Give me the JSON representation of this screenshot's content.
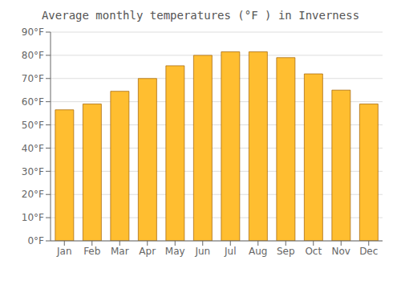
{
  "chart_data": {
    "type": "bar",
    "title": "Average monthly temperatures (°F ) in Inverness",
    "categories": [
      "Jan",
      "Feb",
      "Mar",
      "Apr",
      "May",
      "Jun",
      "Jul",
      "Aug",
      "Sep",
      "Oct",
      "Nov",
      "Dec"
    ],
    "values": [
      56.5,
      59.0,
      64.5,
      70.0,
      75.5,
      80.0,
      81.5,
      81.5,
      79.0,
      72.0,
      65.0,
      59.0
    ],
    "color": "#FFBE30",
    "ylim": [
      0,
      90
    ],
    "yticks": [
      {
        "value": 0,
        "label": "0°F"
      },
      {
        "value": 10,
        "label": "10°F"
      },
      {
        "value": 20,
        "label": "20°F"
      },
      {
        "value": 30,
        "label": "30°F"
      },
      {
        "value": 40,
        "label": "40°F"
      },
      {
        "value": 50,
        "label": "50°F"
      },
      {
        "value": 60,
        "label": "60°F"
      },
      {
        "value": 70,
        "label": "70°F"
      },
      {
        "value": 80,
        "label": "80°F"
      },
      {
        "value": 90,
        "label": "90°F"
      }
    ],
    "grid": true
  }
}
